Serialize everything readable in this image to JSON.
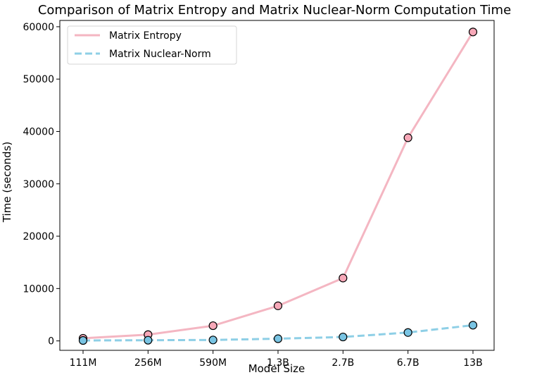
{
  "chart_data": {
    "type": "line",
    "title": "Comparison of Matrix Entropy and Matrix Nuclear-Norm Computation Time",
    "xlabel": "Model Size",
    "ylabel": "Time (seconds)",
    "categories": [
      "111M",
      "256M",
      "590M",
      "1.3B",
      "2.7B",
      "6.7B",
      "13B"
    ],
    "ylim": [
      -1800,
      61200
    ],
    "yticks": [
      0,
      10000,
      20000,
      30000,
      40000,
      50000,
      60000
    ],
    "ytick_labels": [
      "0",
      "10000",
      "20000",
      "30000",
      "40000",
      "50000",
      "60000"
    ],
    "grid": false,
    "legend_position": "top-left",
    "series": [
      {
        "name": "Matrix Entropy",
        "values": [
          500,
          1200,
          2900,
          6700,
          12000,
          38800,
          59000
        ],
        "color": "#f4b6c2",
        "marker_color": "#f7a8b8",
        "line_style": "solid"
      },
      {
        "name": "Matrix Nuclear-Norm",
        "values": [
          80,
          130,
          180,
          420,
          750,
          1600,
          3000
        ],
        "color": "#8ecfe6",
        "marker_color": "#79c4e3",
        "line_style": "dashed"
      }
    ]
  }
}
